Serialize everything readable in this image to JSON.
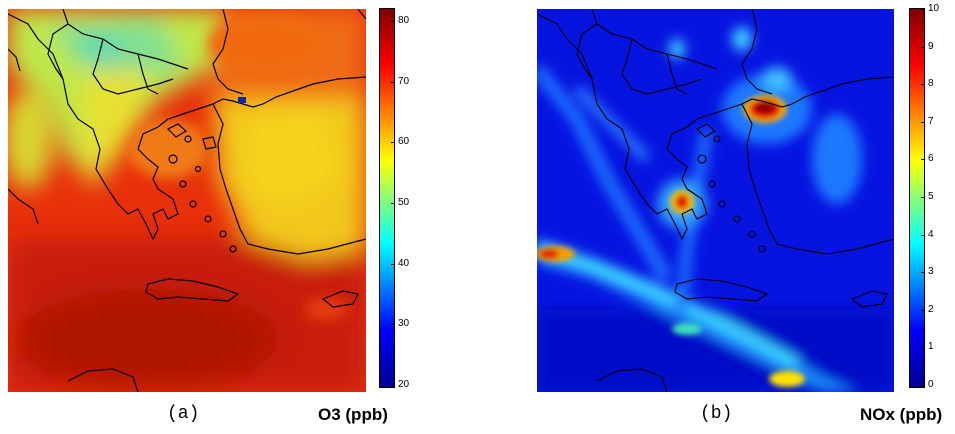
{
  "panels": [
    {
      "id": "a",
      "label": "(a)",
      "unit_label": "O3 (ppb)",
      "colorbar": {
        "min": 20,
        "max": 82,
        "ticks": [
          "80",
          "70",
          "60",
          "50",
          "40",
          "30",
          "20"
        ]
      }
    },
    {
      "id": "b",
      "label": "(b)",
      "unit_label": "NOx (ppb)",
      "colorbar": {
        "min": 0,
        "max": 10,
        "ticks": [
          "10",
          "9",
          "8",
          "7",
          "6",
          "5",
          "4",
          "3",
          "2",
          "1",
          "0"
        ]
      }
    }
  ],
  "colors": {
    "jet_dark_red": "#800000",
    "jet_red": "#ff0000",
    "jet_yellow": "#ffff00",
    "jet_cyan": "#00ffff",
    "jet_blue": "#0000ff",
    "jet_dark_blue": "#00008f",
    "coastline": "#000000"
  }
}
